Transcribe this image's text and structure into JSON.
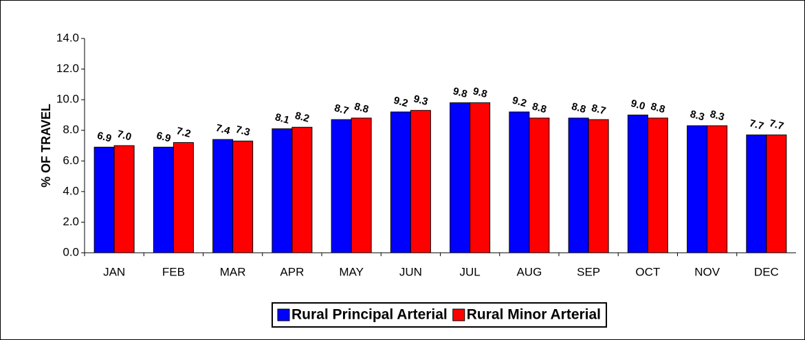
{
  "chart_data": {
    "type": "bar",
    "y_label": "% OF TRAVEL",
    "categories": [
      "JAN",
      "FEB",
      "MAR",
      "APR",
      "MAY",
      "JUN",
      "JUL",
      "AUG",
      "SEP",
      "OCT",
      "NOV",
      "DEC"
    ],
    "series": [
      {
        "name": "Rural Principal Arterial",
        "color": "#0000ff",
        "values": [
          6.9,
          6.9,
          7.4,
          8.1,
          8.7,
          9.2,
          9.8,
          9.2,
          8.8,
          9.0,
          8.3,
          7.7
        ],
        "value_labels": [
          "6.9",
          "6.9",
          "7.4",
          "8.1",
          "8.7",
          "9.2",
          "9.8",
          "9.2",
          "8.8",
          "9.0",
          "8.3",
          "7.7"
        ]
      },
      {
        "name": "Rural Minor Arterial",
        "color": "#ff0000",
        "values": [
          7.0,
          7.2,
          7.3,
          8.2,
          8.8,
          9.3,
          9.8,
          8.8,
          8.7,
          8.8,
          8.3,
          7.7
        ],
        "value_labels": [
          "7.0",
          "7.2",
          "7.3",
          "8.2",
          "8.8",
          "9.3",
          "9.8",
          "8.8",
          "8.7",
          "8.8",
          "8.3",
          "7.7"
        ]
      }
    ],
    "ylim": [
      0,
      14
    ],
    "yticks": [
      {
        "value": 0,
        "label": "0.0"
      },
      {
        "value": 2,
        "label": "2.0"
      },
      {
        "value": 4,
        "label": "4.0"
      },
      {
        "value": 6,
        "label": "6.0"
      },
      {
        "value": 8,
        "label": "8.0"
      },
      {
        "value": 10,
        "label": "10.0"
      },
      {
        "value": 12,
        "label": "12.0"
      },
      {
        "value": 14,
        "label": "14.0"
      }
    ],
    "legend": "bottom"
  }
}
